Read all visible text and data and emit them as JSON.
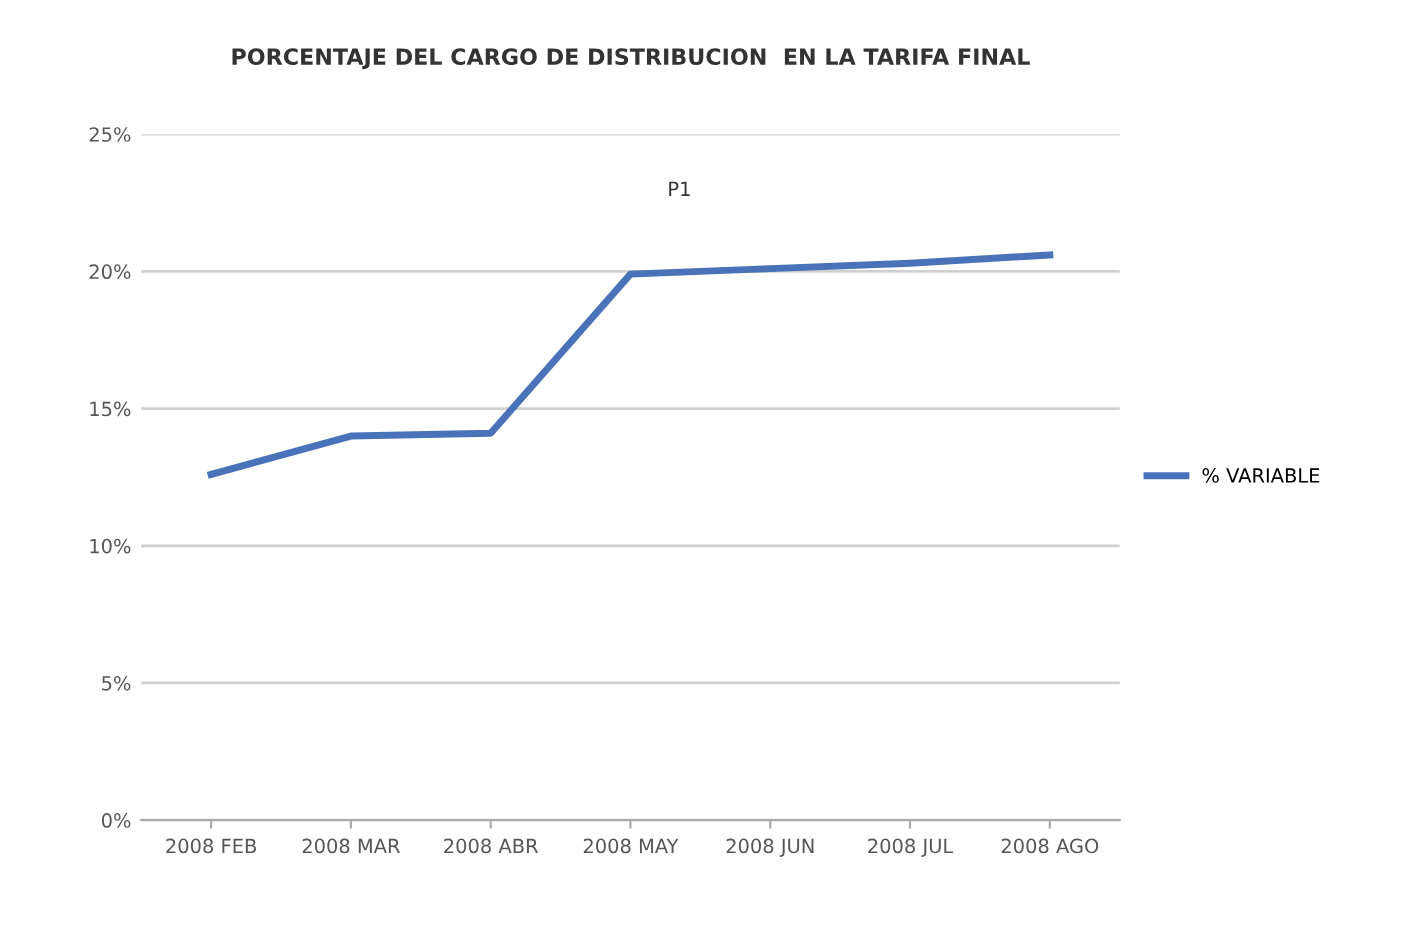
{
  "chart_data": {
    "type": "line",
    "title": "PORCENTAJE DEL CARGO DE DISTRIBUCION  EN LA TARIFA FINAL",
    "categories": [
      "2008 FEB",
      "2008 MAR",
      "2008 ABR",
      "2008 MAY",
      "2008 JUN",
      "2008 JUL",
      "2008 AGO"
    ],
    "series": [
      {
        "name": "% VARIABLE",
        "color": "#4a72b8",
        "values": [
          12.6,
          14.0,
          14.1,
          19.9,
          20.1,
          20.3,
          20.6
        ]
      }
    ],
    "ylim": [
      0,
      25
    ],
    "yticks": [
      {
        "value": 0,
        "label": "0%"
      },
      {
        "value": 5,
        "label": "5%"
      },
      {
        "value": 10,
        "label": "10%"
      },
      {
        "value": 15,
        "label": "15%"
      },
      {
        "value": 20,
        "label": "20%"
      },
      {
        "value": 25,
        "label": "25%"
      }
    ],
    "annotations": [
      "P1"
    ],
    "grid": "y",
    "legend": "right",
    "marker": "none",
    "line_style": "solid"
  }
}
